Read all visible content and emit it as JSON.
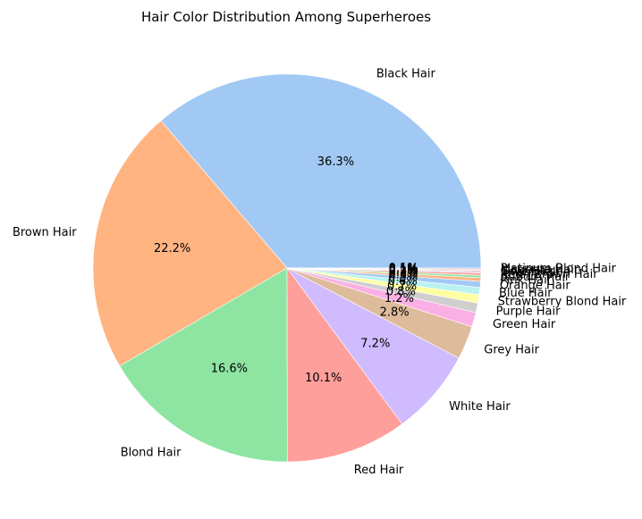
{
  "chart_data": {
    "type": "pie",
    "title": "Hair Color Distribution Among Superheroes",
    "start_angle_deg": 0,
    "direction": "counterclockwise",
    "slices": [
      {
        "label": "Black Hair",
        "value": 36.3,
        "pct_label": "36.3%",
        "color": "#a1c9f4"
      },
      {
        "label": "Brown Hair",
        "value": 22.2,
        "pct_label": "22.2%",
        "color": "#ffb482"
      },
      {
        "label": "Blond Hair",
        "value": 16.6,
        "pct_label": "16.6%",
        "color": "#8de5a1"
      },
      {
        "label": "Red Hair",
        "value": 10.1,
        "pct_label": "10.1%",
        "color": "#ff9f9b"
      },
      {
        "label": "White Hair",
        "value": 7.2,
        "pct_label": "7.2%",
        "color": "#d0bbff"
      },
      {
        "label": "Grey Hair",
        "value": 2.8,
        "pct_label": "2.8%",
        "color": "#debb9b"
      },
      {
        "label": "Green Hair",
        "value": 1.2,
        "pct_label": "1.2%",
        "color": "#fab0e4"
      },
      {
        "label": "Purple Hair",
        "value": 0.8,
        "pct_label": "0.8%",
        "color": "#cfcfcf"
      },
      {
        "label": "Strawberry Blond Hair",
        "value": 0.7,
        "pct_label": "0.7%",
        "color": "#fffea3"
      },
      {
        "label": "Blue Hair",
        "value": 0.6,
        "pct_label": "0.6%",
        "color": "#b9f2f0"
      },
      {
        "label": "Orange Hair",
        "value": 0.5,
        "pct_label": "0.5%",
        "color": "#a1c9f4"
      },
      {
        "label": "Pink Hair",
        "value": 0.3,
        "pct_label": "0.3%",
        "color": "#ffb482"
      },
      {
        "label": "Auburn Hair",
        "value": 0.2,
        "pct_label": "0.2%",
        "color": "#8de5a1"
      },
      {
        "label": "Red / Brown Hair",
        "value": 0.2,
        "pct_label": "0.2%",
        "color": "#ff9f9b"
      },
      {
        "label": "Silver Hair",
        "value": 0.1,
        "pct_label": "0.1%",
        "color": "#d0bbff"
      },
      {
        "label": "Gold Hair",
        "value": 0.1,
        "pct_label": "0.1%",
        "color": "#debb9b"
      },
      {
        "label": "Magenta Hair",
        "value": 0.1,
        "pct_label": "0.1%",
        "color": "#fab0e4"
      },
      {
        "label": "Platinum Blond Hair",
        "value": 0.1,
        "pct_label": "0.1%",
        "color": "#cfcfcf"
      }
    ]
  }
}
